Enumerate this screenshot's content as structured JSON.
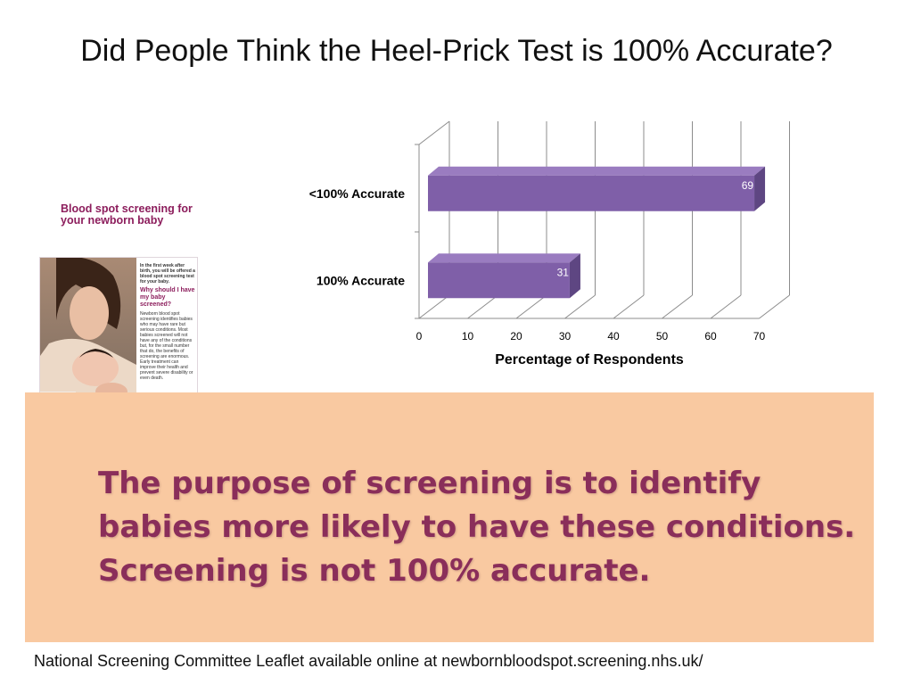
{
  "slide": {
    "title": "Did People Think the Heel-Prick Test is 100% Accurate?",
    "footer": "National Screening Committee  Leaflet available online at newbornbloodspot.screening.nhs.uk/"
  },
  "leaflet": {
    "title": "Blood spot screening for your newborn baby",
    "intro": "In the first week after birth, you will be offered a blood spot screening test for your baby.",
    "question": "Why should I have my baby screened?",
    "body": "Newborn blood spot screening identifies babies who may have rare but serious conditions. Most babies screened will not have any of the conditions but, for the small number that do, the benefits of screening are enormous. Early treatment can improve their health and prevent severe disability or even death."
  },
  "message": {
    "line1": "The purpose of screening is to identify",
    "line2": "babies more likely to have these conditions.",
    "line3": "Screening is not 100% accurate."
  },
  "colors": {
    "bar": "#7f5fa8",
    "bar_top": "#9a7cc0",
    "bar_side": "#5e4682",
    "panel": "#f9c9a1",
    "message_text": "#8a2e5a",
    "leaflet_accent": "#8c1d5c"
  },
  "chart_data": {
    "type": "bar",
    "orientation": "horizontal",
    "style": "3d",
    "categories": [
      "<100% Accurate",
      "100% Accurate"
    ],
    "values": [
      69,
      31
    ],
    "data_labels": [
      "69",
      "31"
    ],
    "xlabel": "Percentage of Respondents",
    "ylabel": "",
    "xlim": [
      0,
      70
    ],
    "xticks": [
      0,
      10,
      20,
      30,
      40,
      50,
      60,
      70
    ],
    "grid": true,
    "legend": "none"
  }
}
